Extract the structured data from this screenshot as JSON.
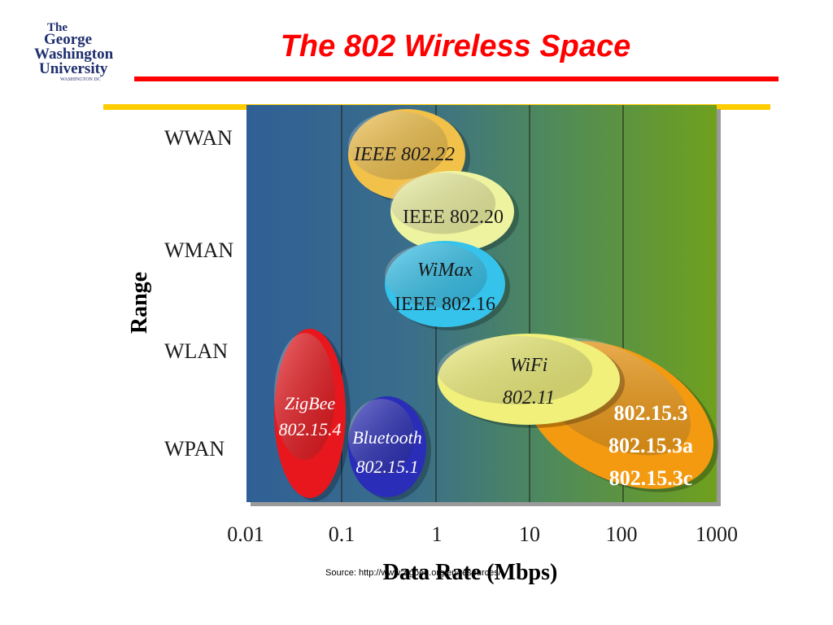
{
  "logo": {
    "lines": [
      "The",
      "George",
      "Washington",
      "University"
    ],
    "subline": "WASHINGTON DC"
  },
  "title": "The 802 Wireless Space",
  "diagram": {
    "range_axis_label": "Range",
    "x_axis_label": "Data Rate (Mbps)",
    "range_levels": [
      "WWAN",
      "WMAN",
      "WLAN",
      "WPAN"
    ],
    "x_ticks": [
      "0.01",
      "0.1",
      "1",
      "10",
      "100",
      "1000"
    ],
    "technologies": [
      {
        "id": "ieee-802-22",
        "lines": [
          "IEEE 802.22"
        ],
        "color": "#f2c14a",
        "text_color": "#1a1a1a"
      },
      {
        "id": "ieee-802-20",
        "lines": [
          "IEEE 802.20"
        ],
        "color": "#eef3a0",
        "text_color": "#1a1a1a"
      },
      {
        "id": "wimax",
        "lines": [
          "WiMax",
          "IEEE 802.16"
        ],
        "color": "#35c3ec",
        "text_color": "#1a1a1a"
      },
      {
        "id": "wifi",
        "lines": [
          "WiFi",
          "802.11"
        ],
        "color": "#f0f07a",
        "text_color": "#1a1a1a"
      },
      {
        "id": "uwb",
        "lines": [
          "802.15.3",
          "802.15.3a",
          "802.15.3c"
        ],
        "color": "#f39a10",
        "text_color": "#ffffff"
      },
      {
        "id": "zigbee",
        "lines": [
          "ZigBee",
          "802.15.4"
        ],
        "color": "#e8171d",
        "text_color": "#ffffff"
      },
      {
        "id": "bluetooth",
        "lines": [
          "Bluetooth",
          "802.15.1"
        ],
        "color": "#2a2db8",
        "text_color": "#ffffff"
      }
    ]
  },
  "source_note": "Source: http://www.zigbee.org/en/resources/"
}
